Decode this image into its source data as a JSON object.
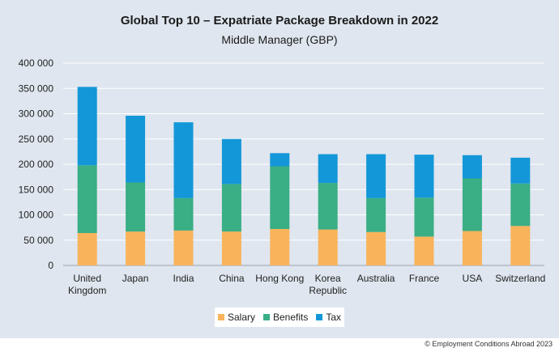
{
  "chart_data": {
    "type": "bar",
    "stacked": true,
    "title": "Global Top 10 – Expatriate Package Breakdown in 2022",
    "subtitle": "Middle Manager (GBP)",
    "xlabel": "",
    "ylabel": "",
    "ylim": [
      0,
      400000
    ],
    "yticks": [
      0,
      50000,
      100000,
      150000,
      200000,
      250000,
      300000,
      350000,
      400000
    ],
    "ytick_labels": [
      "0",
      "50 000",
      "100 000",
      "150 000",
      "200 000",
      "250 000",
      "300 000",
      "350 000",
      "400 000"
    ],
    "grid": true,
    "legend_position": "bottom",
    "categories": [
      [
        "United",
        "Kingdom"
      ],
      [
        "Japan"
      ],
      [
        "India"
      ],
      [
        "China"
      ],
      [
        "Hong Kong"
      ],
      [
        "Korea",
        "Republic"
      ],
      [
        "Australia"
      ],
      [
        "France"
      ],
      [
        "USA"
      ],
      [
        "Switzerland"
      ]
    ],
    "series": [
      {
        "name": "Salary",
        "color": "#f9b35a",
        "values": [
          64000,
          67000,
          69000,
          67000,
          72000,
          71000,
          66000,
          57000,
          68000,
          78000
        ]
      },
      {
        "name": "Benefits",
        "color": "#3aae85",
        "values": [
          134000,
          97000,
          64000,
          94000,
          124000,
          92000,
          67000,
          77000,
          104000,
          84000
        ]
      },
      {
        "name": "Tax",
        "color": "#1497d8",
        "values": [
          155000,
          132000,
          150000,
          89000,
          26000,
          57000,
          87000,
          85000,
          46000,
          51000
        ]
      }
    ]
  },
  "footer": "© Employment Conditions Abroad 2023"
}
